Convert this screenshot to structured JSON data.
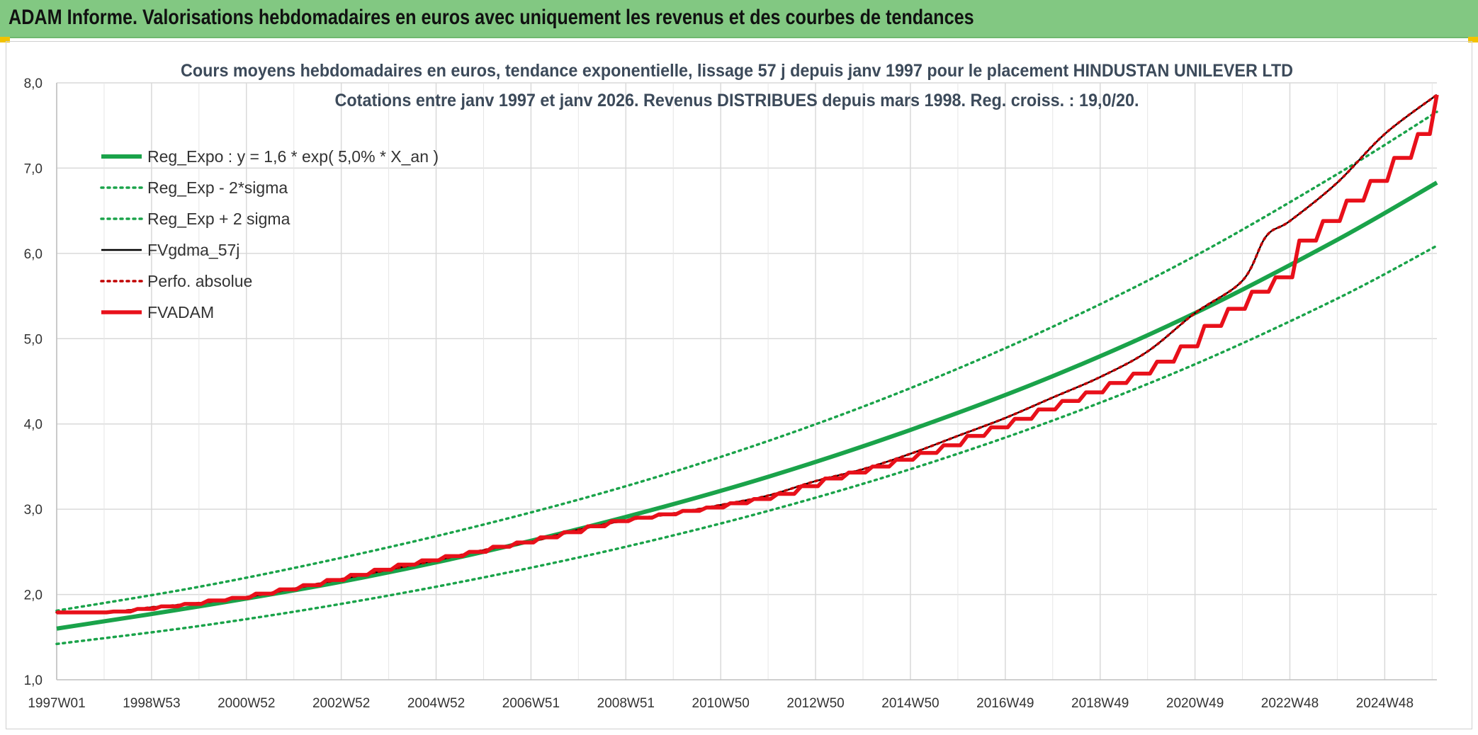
{
  "banner": {
    "title": "ADAM Informe. Valorisations hebdomadaires en euros avec uniquement les revenus et des courbes de tendances"
  },
  "chart_data": {
    "type": "line",
    "title": "Cours moyens hebdomadaires en euros, tendance exponentielle, lissage 57 j depuis janv 1997 pour le placement HINDUSTAN UNILEVER LTD",
    "subtitle": "Cotations entre janv 1997 et janv 2026. Revenus DISTRIBUES depuis mars 1998. Reg. croiss. : 19,0/20.",
    "xlabel": "",
    "ylabel": "",
    "ylim": [
      1.0,
      8.0
    ],
    "yticks": [
      "1,0",
      "2,0",
      "3,0",
      "4,0",
      "5,0",
      "6,0",
      "7,0",
      "8,0"
    ],
    "xlim": [
      1997.0,
      2026.1
    ],
    "xticks": [
      {
        "x": 1997.0,
        "label": "1997W01"
      },
      {
        "x": 1999.0,
        "label": "1998W53"
      },
      {
        "x": 2001.0,
        "label": "2000W52"
      },
      {
        "x": 2003.0,
        "label": "2002W52"
      },
      {
        "x": 2005.0,
        "label": "2004W52"
      },
      {
        "x": 2007.0,
        "label": "2006W51"
      },
      {
        "x": 2009.0,
        "label": "2008W51"
      },
      {
        "x": 2011.0,
        "label": "2010W50"
      },
      {
        "x": 2013.0,
        "label": "2012W50"
      },
      {
        "x": 2015.0,
        "label": "2014W50"
      },
      {
        "x": 2017.0,
        "label": "2016W49"
      },
      {
        "x": 2019.0,
        "label": "2018W49"
      },
      {
        "x": 2021.0,
        "label": "2020W49"
      },
      {
        "x": 2023.0,
        "label": "2022W48"
      },
      {
        "x": 2025.0,
        "label": "2024W48"
      }
    ],
    "grid": true,
    "legend_position": "top-left",
    "series": [
      {
        "name": "Reg_Expo : y = 1,6 * exp( 5,0% *  X_an )",
        "color": "#1aa34a",
        "style": "solid-thick",
        "x": [
          1997.0,
          2000.0,
          2003.0,
          2006.0,
          2009.0,
          2012.0,
          2015.0,
          2018.0,
          2021.0,
          2024.0,
          2026.1
        ],
        "y": [
          1.6,
          1.86,
          2.15,
          2.5,
          2.91,
          3.38,
          3.93,
          4.56,
          5.3,
          6.16,
          6.83
        ]
      },
      {
        "name": "Reg_Exp - 2*sigma",
        "color": "#1aa34a",
        "style": "dotted",
        "x": [
          1997.0,
          2000.0,
          2003.0,
          2006.0,
          2009.0,
          2012.0,
          2015.0,
          2018.0,
          2021.0,
          2024.0,
          2026.1
        ],
        "y": [
          1.42,
          1.63,
          1.89,
          2.2,
          2.56,
          2.98,
          3.47,
          4.04,
          4.7,
          5.47,
          6.09
        ]
      },
      {
        "name": "Reg_Exp + 2 sigma",
        "color": "#1aa34a",
        "style": "dotted",
        "x": [
          1997.0,
          2000.0,
          2003.0,
          2006.0,
          2009.0,
          2012.0,
          2015.0,
          2018.0,
          2021.0,
          2024.0,
          2026.1
        ],
        "y": [
          1.81,
          2.09,
          2.43,
          2.82,
          3.27,
          3.8,
          4.42,
          5.14,
          5.97,
          6.93,
          7.66
        ]
      },
      {
        "name": "FVgdma_57j",
        "color": "#000000",
        "style": "solid-thin",
        "x": [
          1997.0,
          1998.2,
          1999.0,
          2000.0,
          2001.0,
          2002.0,
          2003.0,
          2004.0,
          2005.0,
          2006.0,
          2007.0,
          2008.0,
          2009.0,
          2010.0,
          2011.0,
          2012.0,
          2013.0,
          2014.0,
          2015.0,
          2016.0,
          2017.0,
          2018.0,
          2019.0,
          2020.0,
          2021.0,
          2022.0,
          2022.5,
          2023.0,
          2024.0,
          2025.0,
          2026.1
        ],
        "y": [
          1.79,
          1.8,
          1.85,
          1.9,
          1.97,
          2.07,
          2.18,
          2.29,
          2.4,
          2.52,
          2.62,
          2.76,
          2.87,
          2.95,
          3.05,
          3.16,
          3.33,
          3.47,
          3.65,
          3.86,
          4.07,
          4.31,
          4.55,
          4.85,
          5.3,
          5.68,
          6.2,
          6.38,
          6.83,
          7.4,
          7.86
        ]
      },
      {
        "name": "Perfo. absolue",
        "color": "#c00000",
        "style": "dotted",
        "x": [
          1997.0,
          1998.2,
          1999.0,
          2000.0,
          2001.0,
          2002.0,
          2003.0,
          2004.0,
          2005.0,
          2006.0,
          2007.0,
          2008.0,
          2009.0,
          2010.0,
          2011.0,
          2012.0,
          2013.0,
          2014.0,
          2015.0,
          2016.0,
          2017.0,
          2018.0,
          2019.0,
          2020.0,
          2021.0,
          2022.0,
          2022.5,
          2023.0,
          2024.0,
          2025.0,
          2026.1
        ],
        "y": [
          1.79,
          1.8,
          1.85,
          1.9,
          1.97,
          2.07,
          2.18,
          2.29,
          2.4,
          2.52,
          2.62,
          2.76,
          2.87,
          2.95,
          3.05,
          3.16,
          3.33,
          3.47,
          3.65,
          3.86,
          4.07,
          4.31,
          4.55,
          4.85,
          5.3,
          5.68,
          6.2,
          6.38,
          6.83,
          7.4,
          7.86
        ]
      },
      {
        "name": "FVADAM",
        "color": "#e8101a",
        "style": "step-thick",
        "x": [
          1997.0,
          1998.2,
          1998.7,
          1999.2,
          1999.7,
          2000.2,
          2000.7,
          2001.2,
          2001.7,
          2002.2,
          2002.7,
          2003.2,
          2003.7,
          2004.2,
          2004.7,
          2005.2,
          2005.7,
          2006.2,
          2006.7,
          2007.2,
          2007.7,
          2008.2,
          2008.7,
          2009.2,
          2009.7,
          2010.2,
          2010.7,
          2011.2,
          2011.7,
          2012.2,
          2012.7,
          2013.2,
          2013.7,
          2014.2,
          2014.7,
          2015.2,
          2015.7,
          2016.2,
          2016.7,
          2017.2,
          2017.7,
          2018.2,
          2018.7,
          2019.2,
          2019.7,
          2020.2,
          2020.7,
          2021.2,
          2021.7,
          2022.2,
          2022.7,
          2023.2,
          2023.7,
          2024.2,
          2024.7,
          2025.2,
          2025.7,
          2026.1
        ],
        "y": [
          1.79,
          1.8,
          1.83,
          1.86,
          1.89,
          1.93,
          1.96,
          2.01,
          2.06,
          2.11,
          2.17,
          2.23,
          2.29,
          2.35,
          2.4,
          2.45,
          2.5,
          2.56,
          2.61,
          2.67,
          2.73,
          2.8,
          2.86,
          2.9,
          2.94,
          2.98,
          3.02,
          3.07,
          3.12,
          3.18,
          3.27,
          3.36,
          3.43,
          3.5,
          3.58,
          3.66,
          3.75,
          3.86,
          3.96,
          4.06,
          4.17,
          4.27,
          4.37,
          4.48,
          4.59,
          4.73,
          4.91,
          5.15,
          5.35,
          5.55,
          5.72,
          6.15,
          6.38,
          6.62,
          6.85,
          7.12,
          7.4,
          7.86
        ]
      }
    ]
  }
}
